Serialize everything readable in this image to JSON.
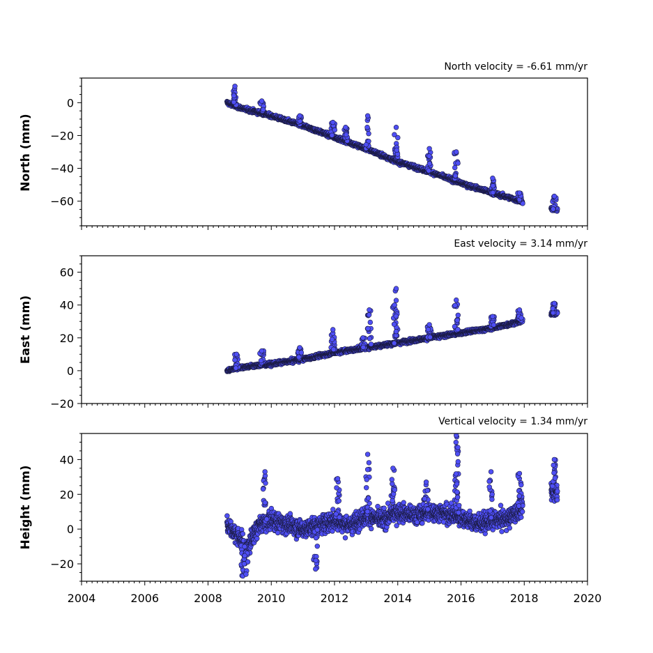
{
  "chart_data": [
    {
      "type": "scatter",
      "title": "North velocity = -6.61 mm/yr",
      "ylabel": "North (mm)",
      "xlim": [
        2004,
        2020
      ],
      "ylim": [
        -75,
        15
      ],
      "xticks": [
        2004,
        2006,
        2008,
        2010,
        2012,
        2014,
        2016,
        2018,
        2020
      ],
      "yticks": [
        -60,
        -40,
        -20,
        0
      ],
      "ytick_labels": [
        "−60",
        "−40",
        "−20",
        "0"
      ],
      "show_xtick_labels": false,
      "series": [
        {
          "color": "#4f4ff5",
          "trend": {
            "x0": 2008.6,
            "y0": 0,
            "slope": -6.61
          },
          "segments": [
            [
              2008.6,
              2017.95
            ],
            [
              2018.85,
              2019.05
            ]
          ],
          "anchors": [
            [
              2008.6,
              0
            ],
            [
              2009.0,
              -3
            ],
            [
              2010.0,
              -8
            ],
            [
              2011.0,
              -14
            ],
            [
              2012.0,
              -21
            ],
            [
              2013.0,
              -28
            ],
            [
              2014.0,
              -36
            ],
            [
              2015.0,
              -42
            ],
            [
              2016.0,
              -49
            ],
            [
              2017.0,
              -55
            ],
            [
              2017.9,
              -60
            ],
            [
              2018.95,
              -65
            ]
          ],
          "spikes": [
            [
              2008.85,
              10
            ],
            [
              2009.7,
              1
            ],
            [
              2010.9,
              -8
            ],
            [
              2011.95,
              -12
            ],
            [
              2012.35,
              -15
            ],
            [
              2013.05,
              -8
            ],
            [
              2013.95,
              -15
            ],
            [
              2015.0,
              -28
            ],
            [
              2015.85,
              -30
            ],
            [
              2017.0,
              -46
            ],
            [
              2017.85,
              -55
            ],
            [
              2018.95,
              -57
            ]
          ]
        }
      ]
    },
    {
      "type": "scatter",
      "title": "East velocity = 3.14 mm/yr",
      "ylabel": "East (mm)",
      "xlim": [
        2004,
        2020
      ],
      "ylim": [
        -20,
        70
      ],
      "xticks": [
        2004,
        2006,
        2008,
        2010,
        2012,
        2014,
        2016,
        2018,
        2020
      ],
      "yticks": [
        -20,
        0,
        20,
        40,
        60
      ],
      "ytick_labels": [
        "−20",
        "0",
        "20",
        "40",
        "60"
      ],
      "show_xtick_labels": false,
      "series": [
        {
          "color": "#4f4ff5",
          "trend": {
            "x0": 2008.6,
            "y0": 0,
            "slope": 3.14
          },
          "segments": [
            [
              2008.6,
              2017.95
            ],
            [
              2018.85,
              2019.05
            ]
          ],
          "anchors": [
            [
              2008.6,
              0
            ],
            [
              2009.0,
              2
            ],
            [
              2010.0,
              4
            ],
            [
              2011.0,
              7
            ],
            [
              2012.0,
              11
            ],
            [
              2013.0,
              14
            ],
            [
              2014.0,
              17
            ],
            [
              2015.0,
              20
            ],
            [
              2016.0,
              23
            ],
            [
              2017.0,
              26
            ],
            [
              2017.9,
              30
            ],
            [
              2018.95,
              35
            ]
          ],
          "spikes": [
            [
              2008.9,
              10
            ],
            [
              2009.7,
              12
            ],
            [
              2010.9,
              14
            ],
            [
              2011.95,
              25
            ],
            [
              2012.9,
              20
            ],
            [
              2013.1,
              37
            ],
            [
              2013.95,
              50
            ],
            [
              2013.9,
              40
            ],
            [
              2015.0,
              28
            ],
            [
              2015.85,
              43
            ],
            [
              2017.0,
              33
            ],
            [
              2017.85,
              37
            ],
            [
              2018.95,
              41
            ]
          ]
        }
      ]
    },
    {
      "type": "scatter",
      "title": "Vertical velocity = 1.34 mm/yr",
      "ylabel": "Height (mm)",
      "xlim": [
        2004,
        2020
      ],
      "ylim": [
        -30,
        55
      ],
      "xticks": [
        2004,
        2006,
        2008,
        2010,
        2012,
        2014,
        2016,
        2018,
        2020
      ],
      "yticks": [
        -20,
        0,
        20,
        40
      ],
      "ytick_labels": [
        "−20",
        "0",
        "20",
        "40"
      ],
      "show_xtick_labels": true,
      "series": [
        {
          "color": "#4f4ff5",
          "trend": {
            "x0": 2008.6,
            "y0": 0,
            "slope": 1.34
          },
          "segments": [
            [
              2008.6,
              2017.95
            ],
            [
              2018.85,
              2019.05
            ]
          ],
          "anchors": [
            [
              2008.6,
              3
            ],
            [
              2009.0,
              -5
            ],
            [
              2009.2,
              -12
            ],
            [
              2009.6,
              2
            ],
            [
              2010.0,
              5
            ],
            [
              2010.5,
              3
            ],
            [
              2011.0,
              0
            ],
            [
              2011.5,
              2
            ],
            [
              2012.0,
              5
            ],
            [
              2012.5,
              2
            ],
            [
              2013.0,
              8
            ],
            [
              2013.5,
              5
            ],
            [
              2014.0,
              10
            ],
            [
              2014.5,
              8
            ],
            [
              2015.0,
              10
            ],
            [
              2015.5,
              9
            ],
            [
              2016.0,
              7
            ],
            [
              2016.5,
              3
            ],
            [
              2017.0,
              5
            ],
            [
              2017.5,
              6
            ],
            [
              2017.9,
              12
            ],
            [
              2018.95,
              22
            ]
          ],
          "spikes": [
            [
              2009.1,
              -27
            ],
            [
              2009.2,
              -26
            ],
            [
              2009.8,
              33
            ],
            [
              2011.4,
              -23
            ],
            [
              2012.1,
              29
            ],
            [
              2013.05,
              43
            ],
            [
              2013.85,
              35
            ],
            [
              2014.9,
              27
            ],
            [
              2015.85,
              54
            ],
            [
              2015.9,
              47
            ],
            [
              2016.95,
              33
            ],
            [
              2017.85,
              32
            ],
            [
              2018.95,
              40
            ]
          ]
        }
      ]
    }
  ]
}
